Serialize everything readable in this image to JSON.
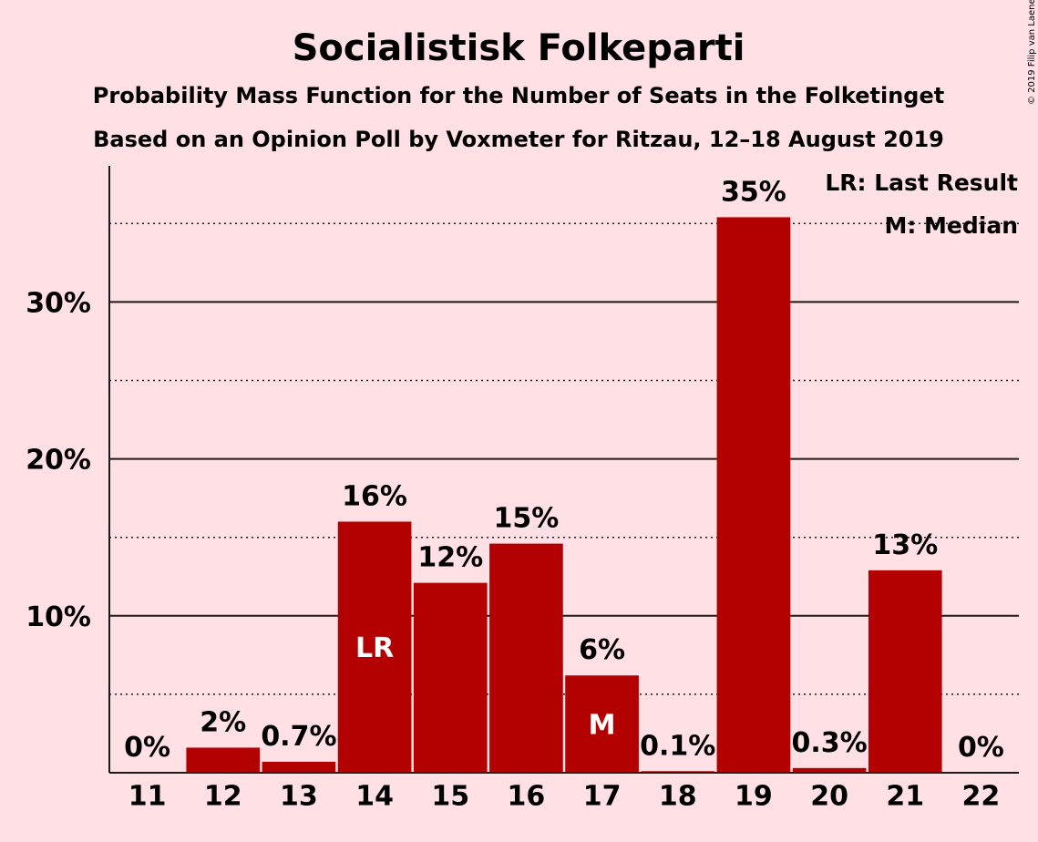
{
  "copyright": "© 2019 Filip van Laenen",
  "chart_data": {
    "type": "bar",
    "title": "Socialistisk Folkeparti",
    "subtitle": "Probability Mass Function for the Number of Seats in the Folketinget",
    "subtitle2": "Based on an Opinion Poll by Voxmeter for Ritzau, 12–18 August 2019",
    "categories": [
      "11",
      "12",
      "13",
      "14",
      "15",
      "16",
      "17",
      "18",
      "19",
      "20",
      "21",
      "22"
    ],
    "values": [
      0,
      1.6,
      0.7,
      16.0,
      12.1,
      14.6,
      6.2,
      0.1,
      35.4,
      0.3,
      12.9,
      0
    ],
    "value_labels": [
      "0%",
      "2%",
      "0.7%",
      "16%",
      "12%",
      "15%",
      "6%",
      "0.1%",
      "35%",
      "0.3%",
      "13%",
      "0%"
    ],
    "last_result_index": 3,
    "median_index": 6,
    "last_result_marker": "LR",
    "median_marker": "M",
    "legend": [
      "LR: Last Result",
      "M: Median"
    ],
    "legend_position": "top-right",
    "yticks": [
      10,
      20,
      30
    ],
    "ytick_labels": [
      "10%",
      "20%",
      "30%"
    ],
    "minor_gridlines": [
      5,
      15,
      25,
      35
    ],
    "ylim": [
      0,
      38.5
    ],
    "bar_color": "#b30000",
    "grid": true
  }
}
